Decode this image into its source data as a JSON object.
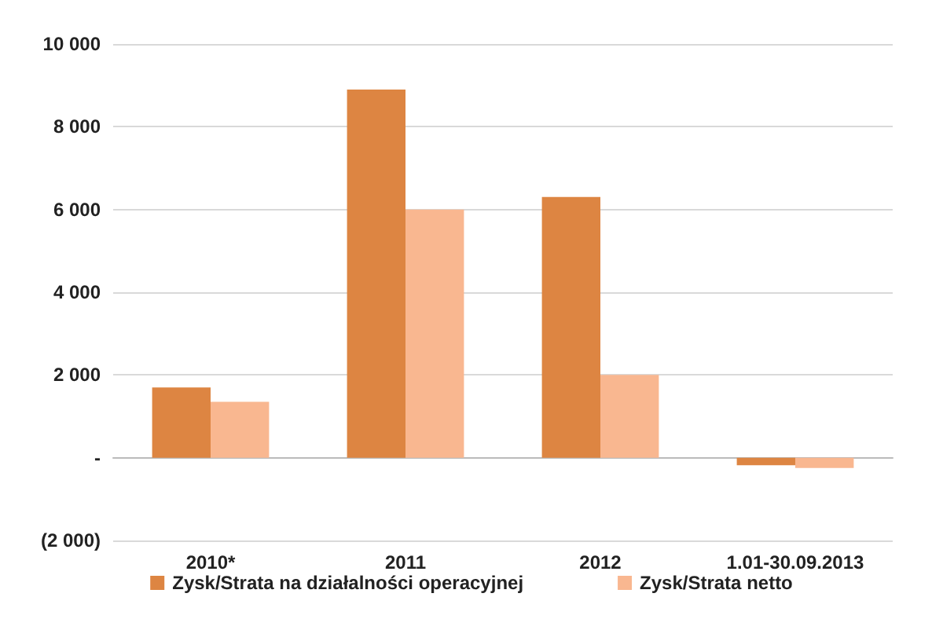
{
  "chart_data": {
    "type": "bar",
    "categories": [
      "2010*",
      "2011",
      "2012",
      "1.01-30.09.2013"
    ],
    "series": [
      {
        "name": "Zysk/Strata na działalności operacyjnej",
        "color": "#dd8542",
        "values": [
          1700,
          8900,
          6300,
          -180
        ]
      },
      {
        "name": "Zysk/Strata netto",
        "color": "#f9b790",
        "values": [
          1350,
          6000,
          2000,
          -250
        ]
      }
    ],
    "ylim": [
      -2000,
      10000
    ],
    "yticks": [
      {
        "value": -2000,
        "label": "(2 000)"
      },
      {
        "value": 0,
        "label": "-"
      },
      {
        "value": 2000,
        "label": "2 000"
      },
      {
        "value": 4000,
        "label": "4 000"
      },
      {
        "value": 6000,
        "label": "6 000"
      },
      {
        "value": 8000,
        "label": "8 000"
      },
      {
        "value": 10000,
        "label": "10 000"
      }
    ],
    "grid": "y",
    "legend": "bottom"
  }
}
